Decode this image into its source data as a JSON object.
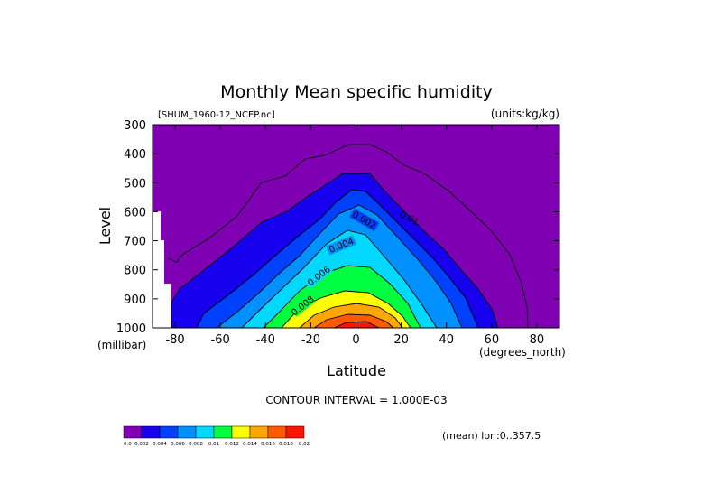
{
  "chart_data": {
    "type": "contour",
    "title": "Monthly Mean specific humidity",
    "file_label": "[SHUM_1960-12_NCEP.nc]",
    "units_label": "(units:kg/kg)",
    "xlabel": "Latitude",
    "ylabel": "Level",
    "x_unit_label": "(degrees_north)",
    "y_unit_label": "(millibar)",
    "xlim": [
      -90,
      90
    ],
    "ylim": [
      1000,
      300
    ],
    "x_ticks": [
      -80,
      -60,
      -40,
      -20,
      0,
      20,
      40,
      60,
      80
    ],
    "y_ticks": [
      300,
      400,
      500,
      600,
      700,
      800,
      900,
      1000
    ],
    "contour_interval_label": "CONTOUR INTERVAL = 1.000E-03",
    "contour_labels": [
      "0.002",
      "0.004",
      "0.006",
      "0.008",
      "0.01",
      "0.002"
    ],
    "mean_label": "(mean) lon:0..357.5",
    "colorbar": {
      "colors": [
        "#7f00b2",
        "#1600ee",
        "#0040ff",
        "#0090ff",
        "#00d8ff",
        "#00ff40",
        "#ffff00",
        "#ffa600",
        "#ff5a00",
        "#ff1400"
      ],
      "labels": [
        "0.0",
        "0.002",
        "0.004",
        "0.006",
        "0.008",
        "0.01",
        "0.012",
        "0.014",
        "0.016",
        "0.018",
        "0.02"
      ]
    },
    "summary": "Specific humidity (kg/kg) vs latitude and pressure level, December 1960. Maximum (~0.018-0.02) near the surface in the tropics (~5N, 1000 mb), decreasing poleward and upward; the 0.002 contour peaks near 470 mb over the equator and reaches the surface near 60N and 70S."
  }
}
